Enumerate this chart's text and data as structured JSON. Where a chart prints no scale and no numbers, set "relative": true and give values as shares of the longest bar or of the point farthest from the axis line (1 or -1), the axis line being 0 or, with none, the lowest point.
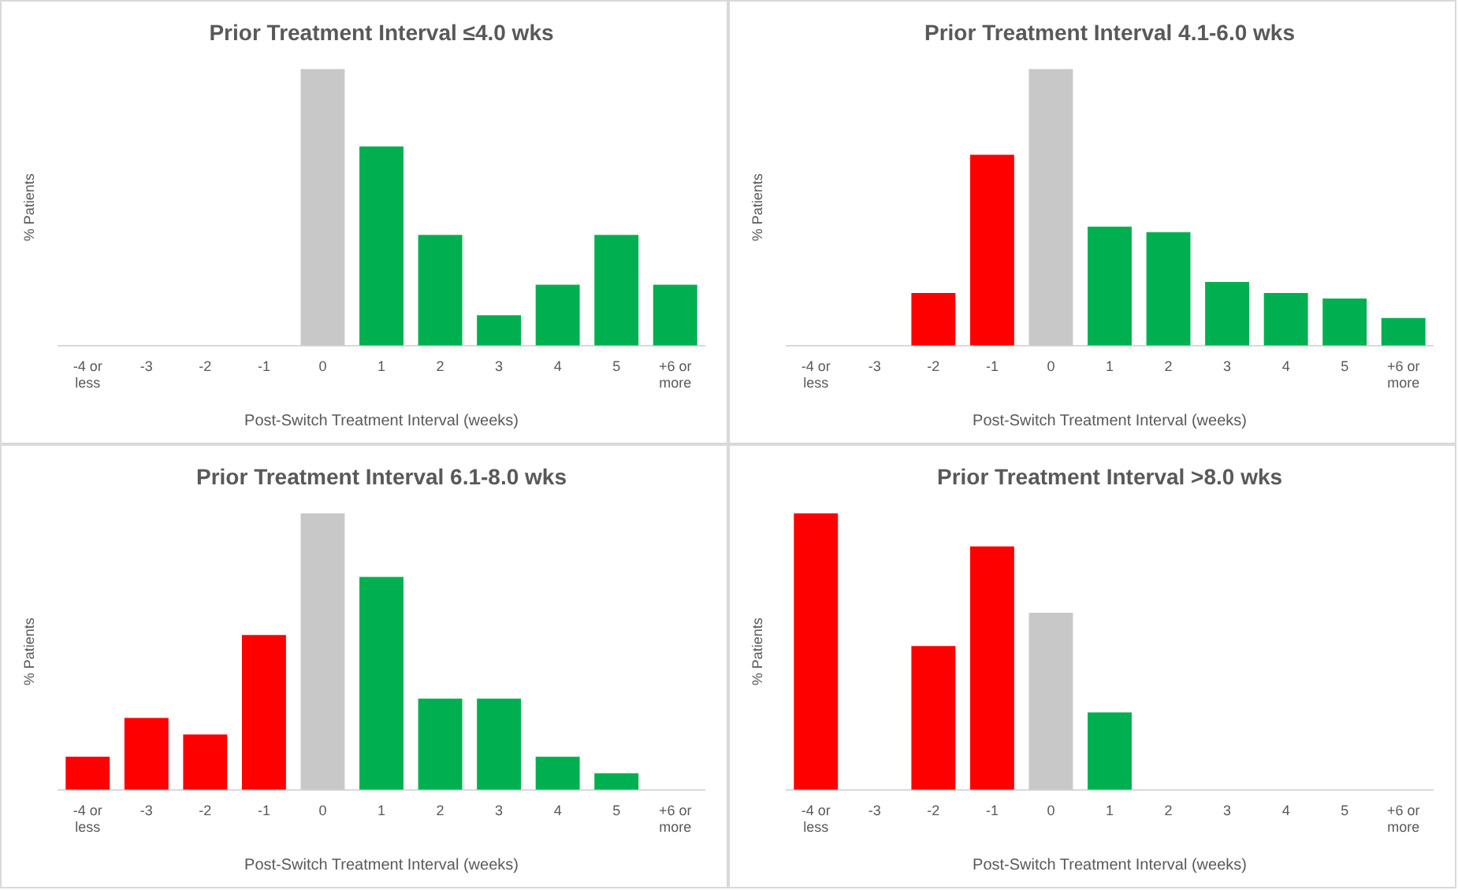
{
  "chart_data": [
    {
      "type": "bar",
      "title": "Prior Treatment Interval ≤4.0 wks",
      "xlabel": "Post-Switch Treatment Interval (weeks)",
      "ylabel": "% Patients",
      "relative": true,
      "legend": false,
      "categories": [
        "-4 or less",
        "-3",
        "-2",
        "-1",
        "0",
        "1",
        "2",
        "3",
        "4",
        "5",
        "+6 or more"
      ],
      "values": [
        null,
        null,
        null,
        null,
        1,
        0.72,
        0.4,
        0.11,
        0.22,
        0.4,
        0.22
      ],
      "colors": [
        "#ff0000",
        "#ff0000",
        "#ff0000",
        "#ff0000",
        "#c8c8c8",
        "#00b050",
        "#00b050",
        "#00b050",
        "#00b050",
        "#00b050",
        "#00b050"
      ]
    },
    {
      "type": "bar",
      "title": "Prior Treatment Interval 4.1-6.0 wks",
      "xlabel": "Post-Switch Treatment Interval (weeks)",
      "ylabel": "% Patients",
      "relative": true,
      "legend": false,
      "categories": [
        "-4 or less",
        "-3",
        "-2",
        "-1",
        "0",
        "1",
        "2",
        "3",
        "4",
        "5",
        "+6 or more"
      ],
      "values": [
        null,
        null,
        0.19,
        0.69,
        1,
        0.43,
        0.41,
        0.23,
        0.19,
        0.17,
        0.1
      ],
      "colors": [
        "#ff0000",
        "#ff0000",
        "#ff0000",
        "#ff0000",
        "#c8c8c8",
        "#00b050",
        "#00b050",
        "#00b050",
        "#00b050",
        "#00b050",
        "#00b050"
      ]
    },
    {
      "type": "bar",
      "title": "Prior Treatment Interval 6.1-8.0 wks",
      "xlabel": "Post-Switch Treatment Interval (weeks)",
      "ylabel": "% Patients",
      "relative": true,
      "legend": false,
      "categories": [
        "-4 or less",
        "-3",
        "-2",
        "-1",
        "0",
        "1",
        "2",
        "3",
        "4",
        "5",
        "+6 or more"
      ],
      "values": [
        0.12,
        0.26,
        0.2,
        0.56,
        1,
        0.77,
        0.33,
        0.33,
        0.12,
        0.06,
        null
      ],
      "colors": [
        "#ff0000",
        "#ff0000",
        "#ff0000",
        "#ff0000",
        "#c8c8c8",
        "#00b050",
        "#00b050",
        "#00b050",
        "#00b050",
        "#00b050",
        "#00b050"
      ]
    },
    {
      "type": "bar",
      "title": "Prior Treatment Interval >8.0 wks",
      "xlabel": "Post-Switch Treatment Interval (weeks)",
      "ylabel": "% Patients",
      "relative": true,
      "legend": false,
      "categories": [
        "-4 or less",
        "-3",
        "-2",
        "-1",
        "0",
        "1",
        "2",
        "3",
        "4",
        "5",
        "+6 or more"
      ],
      "values": [
        1,
        null,
        0.52,
        0.88,
        0.64,
        0.28,
        null,
        null,
        null,
        null,
        null
      ],
      "colors": [
        "#ff0000",
        "#ff0000",
        "#ff0000",
        "#ff0000",
        "#c8c8c8",
        "#00b050",
        "#00b050",
        "#00b050",
        "#00b050",
        "#00b050",
        "#00b050"
      ]
    }
  ]
}
